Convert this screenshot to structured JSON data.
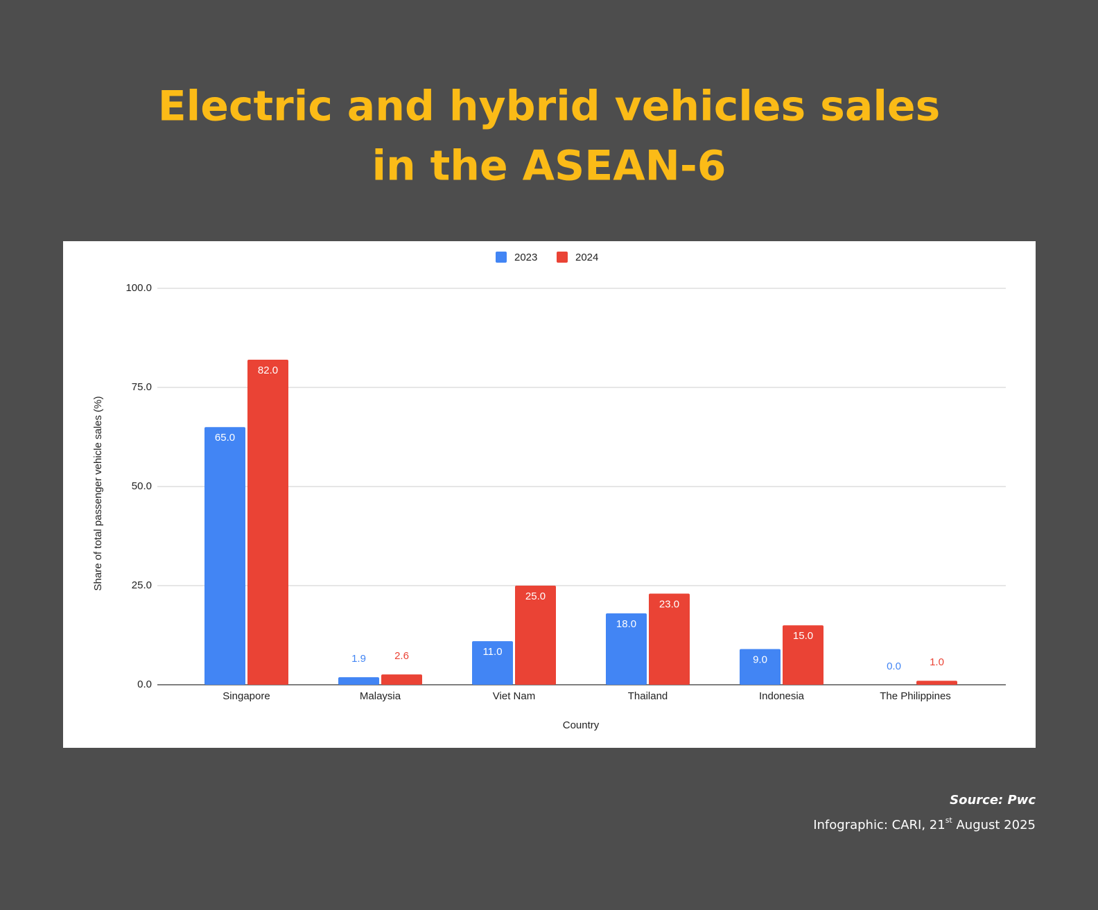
{
  "chart_data": {
    "type": "bar",
    "title": [
      "Electric and hybrid vehicles sales",
      "in the ASEAN-6"
    ],
    "x_label": "Country",
    "y_label": "Share of total passenger vehicle sales (%)",
    "categories": [
      "Singapore",
      "Malaysia",
      "Viet Nam",
      "Thailand",
      "Indonesia",
      "The Philippines"
    ],
    "series": [
      {
        "name": "2023",
        "color": "#4285f4",
        "values": [
          65,
          1.9,
          11,
          18,
          9,
          0
        ],
        "value_labels": [
          "65.0",
          "1.9",
          "11.0",
          "18.0",
          "9.0",
          "0.0"
        ]
      },
      {
        "name": "2024",
        "color": "#ea4335",
        "values": [
          82,
          2.6,
          25,
          23,
          15,
          1
        ],
        "value_labels": [
          "82.0",
          "2.6",
          "25.0",
          "23.0",
          "15.0",
          "1.0"
        ]
      }
    ],
    "ylim": [
      0,
      100
    ],
    "yticks": [
      {
        "value": 0,
        "label": "0.0"
      },
      {
        "value": 25,
        "label": "25.0"
      },
      {
        "value": 50,
        "label": "50.0"
      },
      {
        "value": 75,
        "label": "75.0"
      },
      {
        "value": 100,
        "label": "100.0"
      }
    ],
    "grid": true,
    "legend": "top",
    "footer": {
      "source": "Source: Pwc",
      "credit": [
        "Infographic: CARI, 21",
        "st",
        " August 2025"
      ]
    }
  }
}
